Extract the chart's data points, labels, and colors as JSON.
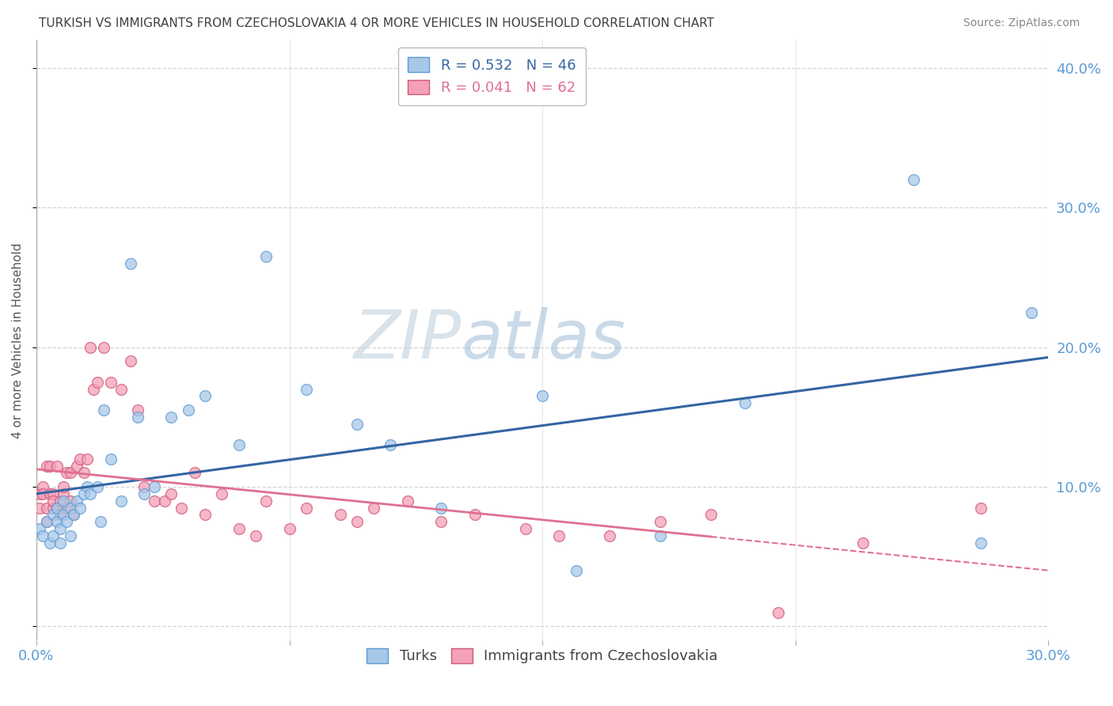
{
  "title": "TURKISH VS IMMIGRANTS FROM CZECHOSLOVAKIA 4 OR MORE VEHICLES IN HOUSEHOLD CORRELATION CHART",
  "source": "Source: ZipAtlas.com",
  "ylabel": "4 or more Vehicles in Household",
  "xlim": [
    0.0,
    0.3
  ],
  "ylim": [
    -0.01,
    0.42
  ],
  "xticks": [
    0.0,
    0.075,
    0.15,
    0.225,
    0.3
  ],
  "xticklabels": [
    "0.0%",
    "",
    "",
    "",
    "30.0%"
  ],
  "yticks": [
    0.0,
    0.1,
    0.2,
    0.3,
    0.4
  ],
  "yticklabels_right": [
    "",
    "10.0%",
    "20.0%",
    "30.0%",
    "40.0%"
  ],
  "grid_color": "#d0d0d0",
  "background_color": "#ffffff",
  "tick_color": "#5b9bd5",
  "title_color": "#404040",
  "source_color": "#888888",
  "turks_color": "#a8c8e8",
  "turks_edge_color": "#5b9bd5",
  "turks_R": 0.532,
  "turks_N": 46,
  "turks_line_color": "#3465a4",
  "czech_color": "#f4a0b8",
  "czech_edge_color": "#d05878",
  "czech_R": 0.041,
  "czech_N": 62,
  "czech_line_color": "#e07090",
  "turks_x": [
    0.001,
    0.002,
    0.003,
    0.004,
    0.005,
    0.005,
    0.006,
    0.006,
    0.007,
    0.007,
    0.008,
    0.008,
    0.009,
    0.01,
    0.01,
    0.011,
    0.012,
    0.013,
    0.014,
    0.015,
    0.016,
    0.018,
    0.019,
    0.02,
    0.022,
    0.025,
    0.028,
    0.03,
    0.032,
    0.035,
    0.04,
    0.045,
    0.05,
    0.06,
    0.068,
    0.08,
    0.095,
    0.105,
    0.12,
    0.15,
    0.16,
    0.185,
    0.21,
    0.26,
    0.28,
    0.295
  ],
  "turks_y": [
    0.07,
    0.065,
    0.075,
    0.06,
    0.08,
    0.065,
    0.075,
    0.085,
    0.07,
    0.06,
    0.08,
    0.09,
    0.075,
    0.065,
    0.085,
    0.08,
    0.09,
    0.085,
    0.095,
    0.1,
    0.095,
    0.1,
    0.075,
    0.155,
    0.12,
    0.09,
    0.26,
    0.15,
    0.095,
    0.1,
    0.15,
    0.155,
    0.165,
    0.13,
    0.265,
    0.17,
    0.145,
    0.13,
    0.085,
    0.165,
    0.04,
    0.065,
    0.16,
    0.32,
    0.06,
    0.225
  ],
  "czech_x": [
    0.001,
    0.001,
    0.002,
    0.002,
    0.003,
    0.003,
    0.003,
    0.004,
    0.004,
    0.005,
    0.005,
    0.005,
    0.006,
    0.006,
    0.007,
    0.007,
    0.008,
    0.008,
    0.009,
    0.009,
    0.01,
    0.01,
    0.011,
    0.012,
    0.013,
    0.014,
    0.015,
    0.016,
    0.017,
    0.018,
    0.02,
    0.022,
    0.025,
    0.028,
    0.03,
    0.032,
    0.035,
    0.038,
    0.04,
    0.043,
    0.047,
    0.05,
    0.055,
    0.06,
    0.065,
    0.068,
    0.075,
    0.08,
    0.09,
    0.095,
    0.1,
    0.11,
    0.12,
    0.13,
    0.145,
    0.155,
    0.17,
    0.185,
    0.2,
    0.22,
    0.245,
    0.28
  ],
  "czech_y": [
    0.085,
    0.095,
    0.1,
    0.095,
    0.085,
    0.075,
    0.115,
    0.095,
    0.115,
    0.095,
    0.085,
    0.09,
    0.085,
    0.115,
    0.09,
    0.08,
    0.095,
    0.1,
    0.11,
    0.085,
    0.11,
    0.09,
    0.08,
    0.115,
    0.12,
    0.11,
    0.12,
    0.2,
    0.17,
    0.175,
    0.2,
    0.175,
    0.17,
    0.19,
    0.155,
    0.1,
    0.09,
    0.09,
    0.095,
    0.085,
    0.11,
    0.08,
    0.095,
    0.07,
    0.065,
    0.09,
    0.07,
    0.085,
    0.08,
    0.075,
    0.085,
    0.09,
    0.075,
    0.08,
    0.07,
    0.065,
    0.065,
    0.075,
    0.08,
    0.01,
    0.06,
    0.085
  ],
  "legend_box_color": "#ffffff",
  "legend_border_color": "#bbbbbb",
  "marker_size": 100,
  "watermark_text": "ZIPatlas",
  "watermark_color": "#c8d8ea",
  "watermark_alpha": 0.6
}
